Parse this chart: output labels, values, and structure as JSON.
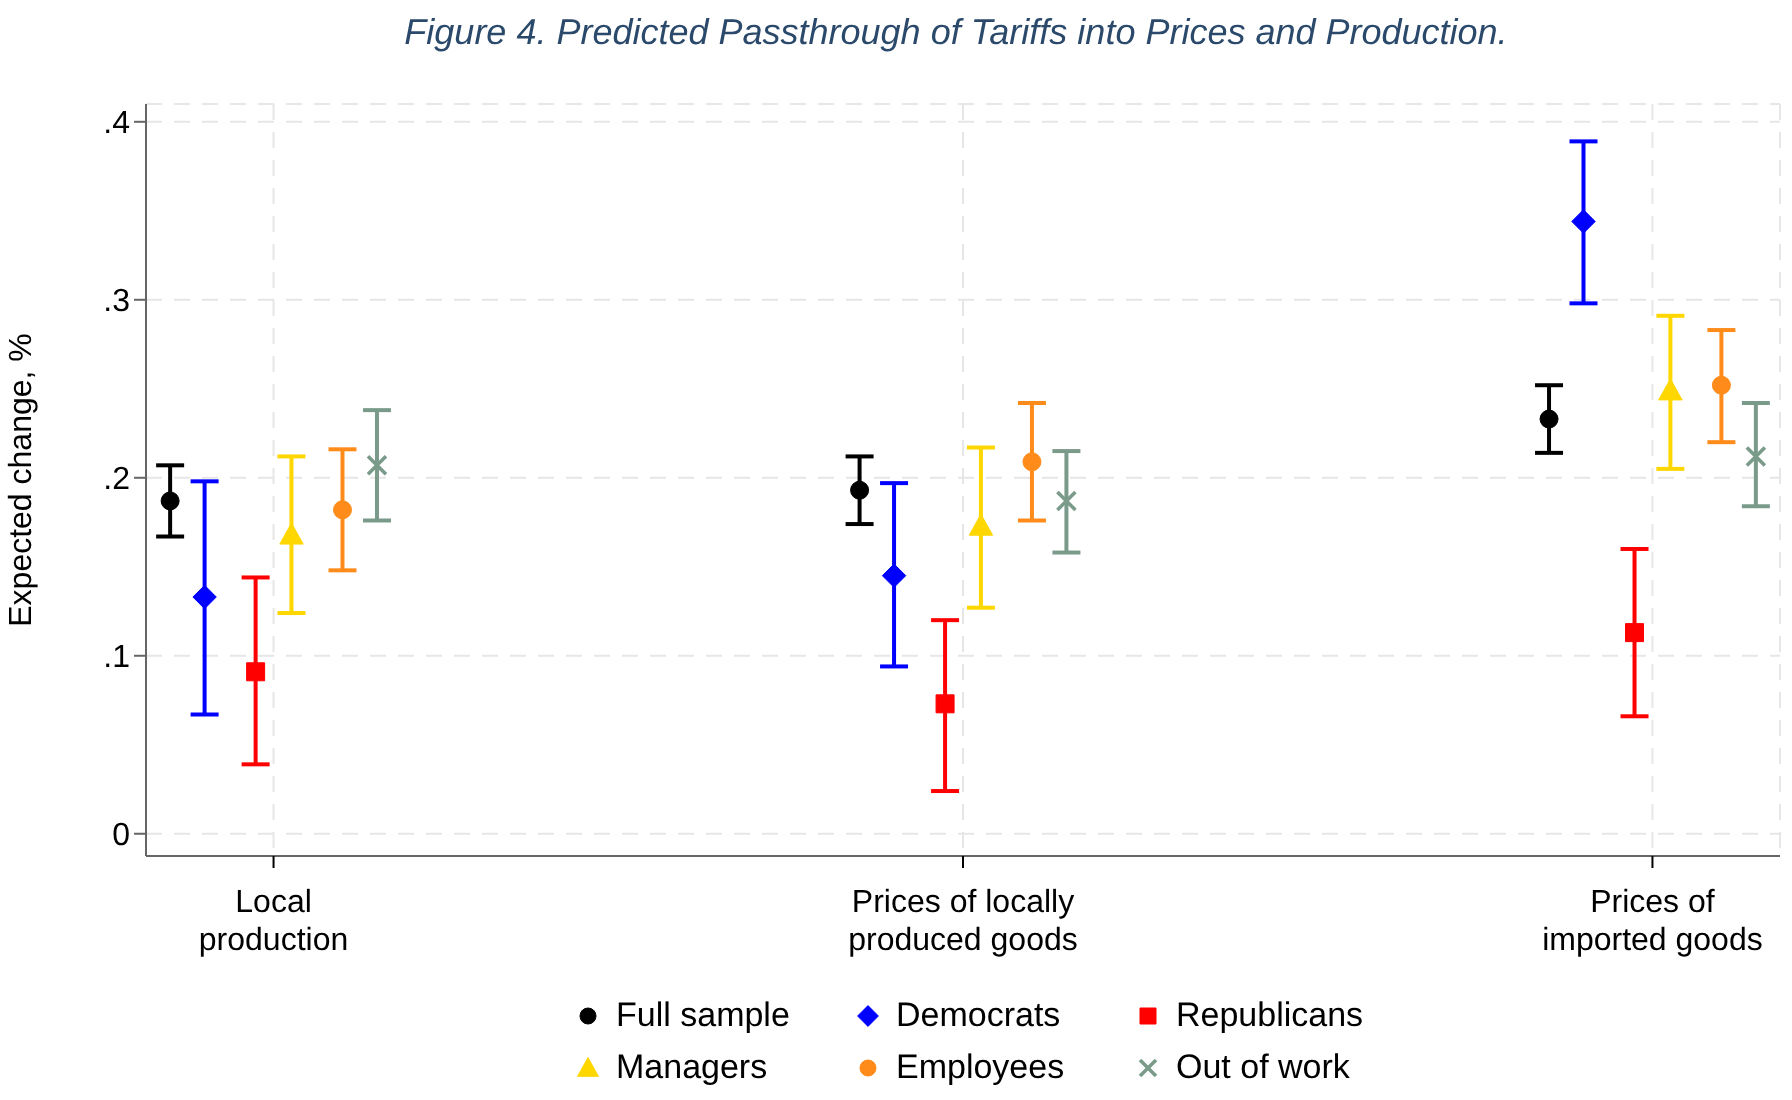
{
  "chart_data": {
    "type": "scatter",
    "title": "Figure 4. Predicted Passthrough of Tariffs into Prices and Production.",
    "ylabel": "Expected change, %",
    "categories": [
      "Local production",
      "Prices of locally produced goods",
      "Prices of imported goods"
    ],
    "ylim": [
      -0.0125,
      0.41
    ],
    "yticks": [
      {
        "value": 0,
        "label": "0"
      },
      {
        "value": 0.1,
        "label": ".1"
      },
      {
        "value": 0.2,
        "label": ".2"
      },
      {
        "value": 0.3,
        "label": ".3"
      },
      {
        "value": 0.4,
        "label": ".4"
      }
    ],
    "grid": true,
    "legend": "bottom",
    "series": [
      {
        "name": "Full sample",
        "color": "#000000",
        "marker": "circle",
        "values": [
          0.187,
          0.193,
          0.233
        ],
        "errors": [
          [
            0.167,
            0.207
          ],
          [
            0.174,
            0.212
          ],
          [
            0.214,
            0.252
          ]
        ]
      },
      {
        "name": "Democrats",
        "color": "#0000ff",
        "marker": "diamond",
        "values": [
          0.133,
          0.145,
          0.344
        ],
        "errors": [
          [
            0.067,
            0.198
          ],
          [
            0.094,
            0.197
          ],
          [
            0.298,
            0.389
          ]
        ]
      },
      {
        "name": "Republicans",
        "color": "#ff0000",
        "marker": "square",
        "values": [
          0.091,
          0.073,
          0.113
        ],
        "errors": [
          [
            0.039,
            0.144
          ],
          [
            0.024,
            0.12
          ],
          [
            0.066,
            0.16
          ]
        ]
      },
      {
        "name": "Managers",
        "color": "#ffd700",
        "marker": "triangle",
        "values": [
          0.168,
          0.173,
          0.249
        ],
        "errors": [
          [
            0.124,
            0.212
          ],
          [
            0.127,
            0.217
          ],
          [
            0.205,
            0.291
          ]
        ]
      },
      {
        "name": "Employees",
        "color": "#ff8c1a",
        "marker": "circle",
        "values": [
          0.182,
          0.209,
          0.252
        ],
        "errors": [
          [
            0.148,
            0.216
          ],
          [
            0.176,
            0.242
          ],
          [
            0.22,
            0.283
          ]
        ]
      },
      {
        "name": "Out of work",
        "color": "#7a9a8a",
        "marker": "cross",
        "values": [
          0.207,
          0.187,
          0.212
        ],
        "errors": [
          [
            0.176,
            0.238
          ],
          [
            0.158,
            0.215
          ],
          [
            0.184,
            0.242
          ]
        ]
      }
    ]
  }
}
